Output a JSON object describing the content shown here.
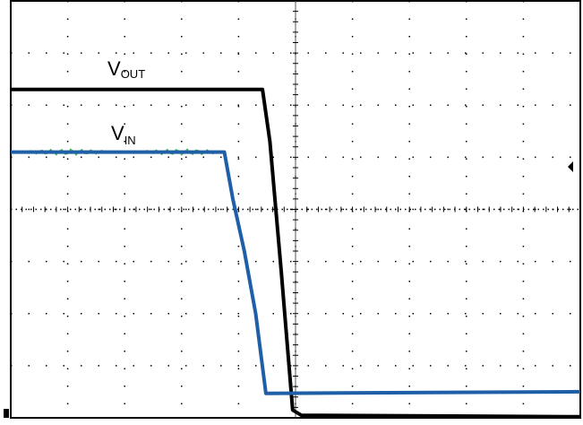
{
  "chart_data": {
    "type": "line",
    "title": "",
    "xlabel": "",
    "ylabel": "",
    "grid": true,
    "xlim": [
      0,
      10
    ],
    "ylim": [
      0,
      8
    ],
    "series": [
      {
        "name": "VOUT",
        "label_main": "V",
        "label_sub": "OUT",
        "color": "#000000",
        "points": [
          [
            0,
            6.3
          ],
          [
            4.42,
            6.3
          ],
          [
            4.55,
            5.3
          ],
          [
            4.75,
            2.8
          ],
          [
            4.95,
            0.15
          ],
          [
            5.1,
            0.05
          ],
          [
            10,
            0.02
          ]
        ]
      },
      {
        "name": "VIN",
        "label_main": "V",
        "label_sub": "IN",
        "color": "#1f5fa8",
        "points": [
          [
            0,
            5.1
          ],
          [
            3.75,
            5.1
          ],
          [
            3.9,
            4.2
          ],
          [
            4.1,
            3.2
          ],
          [
            4.3,
            2.0
          ],
          [
            4.48,
            0.47
          ],
          [
            10,
            0.5
          ]
        ]
      }
    ],
    "colors": {
      "background": "#ffffff",
      "grid": "#000000",
      "noise": "#33aa33"
    }
  }
}
